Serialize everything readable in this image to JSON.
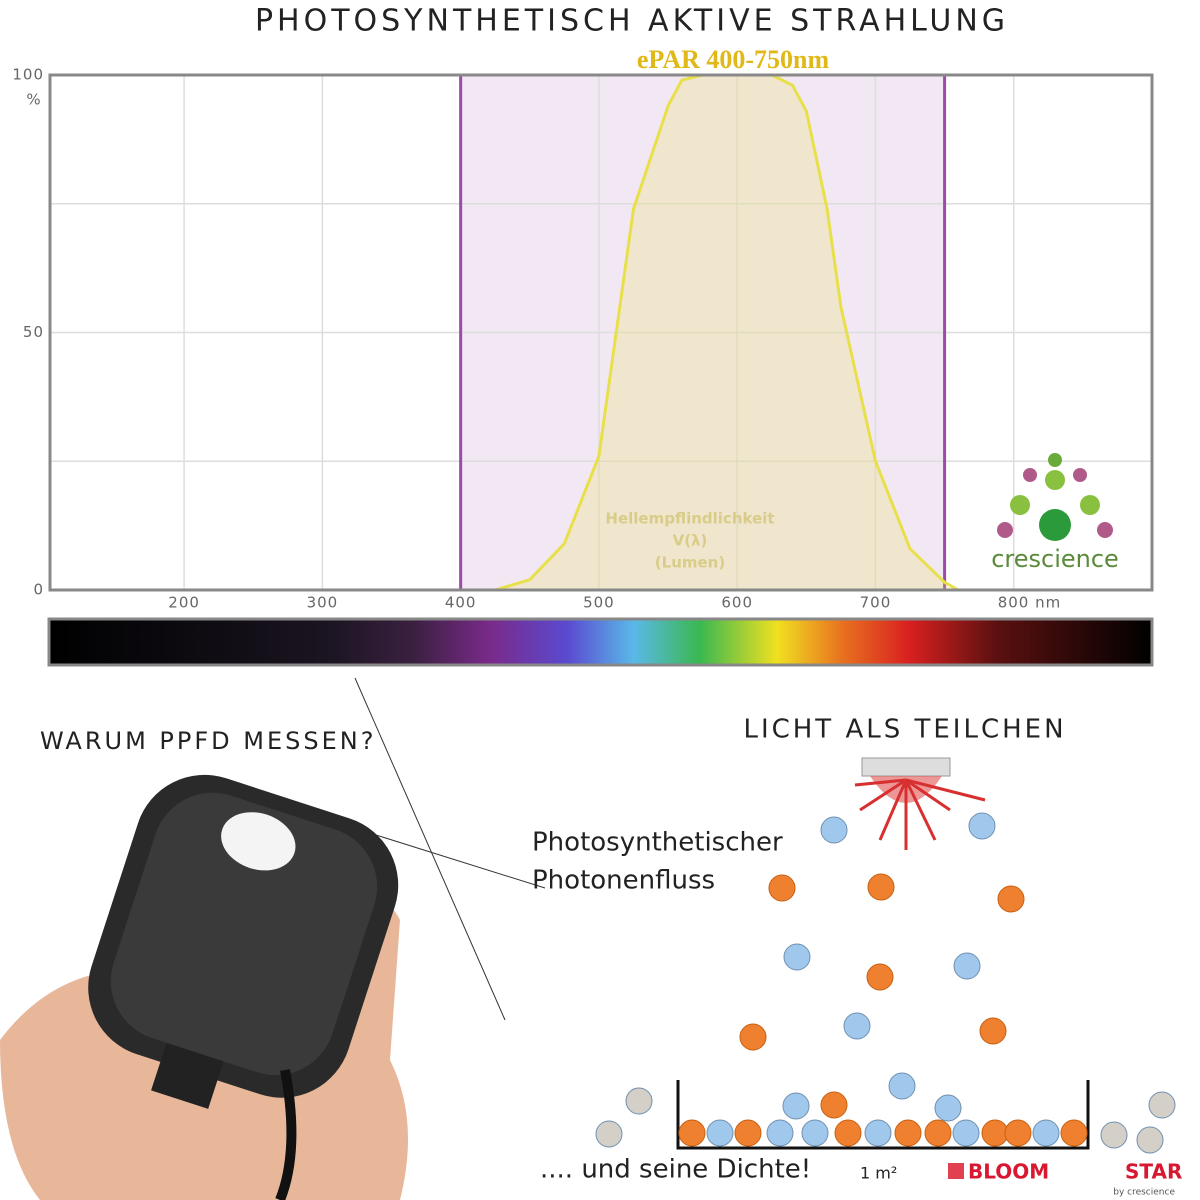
{
  "chart_data": {
    "type": "area",
    "title": "PHOTOSYNTHETISCH AKTIVE STRAHLUNG",
    "subtitle": "ePAR 400-750nm",
    "annotation": [
      "Hellempflindlichkeit",
      "V(λ)",
      "(Lumen)"
    ],
    "y_unit": "%",
    "x": [
      425,
      450,
      475,
      500,
      525,
      550,
      560,
      575,
      600,
      625,
      640,
      650,
      665,
      675,
      700,
      725,
      750,
      760
    ],
    "values": [
      0,
      2,
      9,
      26,
      74,
      94,
      99,
      100,
      100,
      100,
      98,
      93,
      74,
      55,
      25,
      8,
      1.5,
      0
    ],
    "color": "#e8e04a",
    "band": [
      400,
      750
    ],
    "band_color": "#9b4aa8",
    "xlim": [
      103,
      900
    ],
    "ylim": [
      0,
      100
    ],
    "xticks": [
      200,
      300,
      400,
      500,
      600,
      700,
      {
        "value": 800,
        "label": "800 nm"
      }
    ],
    "yticks": [
      0,
      50,
      100
    ],
    "ygrid": [
      0,
      25,
      50,
      75,
      100
    ],
    "grid": true
  },
  "infographic": {
    "left_heading": "WARUM PPFD MESSEN?",
    "right_heading": "LICHT ALS TEILCHEN",
    "label": [
      "Photosynthetischer",
      "Photonenfluss"
    ],
    "footer": ".... und seine Dichte!",
    "area": "1 m²",
    "logo": "crescience",
    "brand": [
      "BLOOM",
      "STAR"
    ],
    "brand_sub": "by crescience"
  }
}
